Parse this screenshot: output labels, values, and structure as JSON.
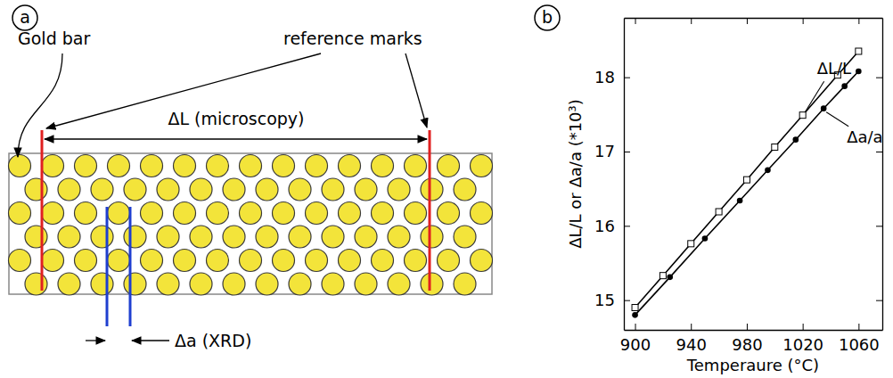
{
  "diagram": {
    "panel_label": "a",
    "labels": {
      "bar": "Gold bar",
      "marks": "reference marks",
      "length": "ΔL (microscopy)",
      "spacing": "Δa (XRD)"
    }
  },
  "chart_data": {
    "type": "line",
    "panel_label": "b",
    "x_label": "Temperaure (°C)",
    "y_label": "ΔL/L or Δa/a (*10³)",
    "xlim": [
      892,
      1077
    ],
    "xticks": [
      900,
      940,
      980,
      1020,
      1060
    ],
    "ylim": [
      14.6,
      18.8
    ],
    "yticks": [
      15,
      16,
      17,
      18
    ],
    "grid": false,
    "series": [
      {
        "name": "ΔL/L",
        "color": "#000000",
        "marker": "square",
        "line_style": "solid",
        "x": [
          900,
          920,
          940,
          960,
          980,
          1000,
          1020,
          1045,
          1060
        ],
        "values": [
          14.9,
          15.33,
          15.76,
          16.19,
          16.62,
          17.06,
          17.49,
          18.03,
          18.35
        ]
      },
      {
        "name": "Δa/a",
        "color": "#000000",
        "marker": "circle",
        "line_style": "solid",
        "x": [
          900,
          925,
          950,
          975,
          995,
          1015,
          1035,
          1050,
          1060
        ],
        "values": [
          14.8,
          15.31,
          15.83,
          16.34,
          16.75,
          17.16,
          17.58,
          17.88,
          18.08
        ]
      }
    ]
  }
}
